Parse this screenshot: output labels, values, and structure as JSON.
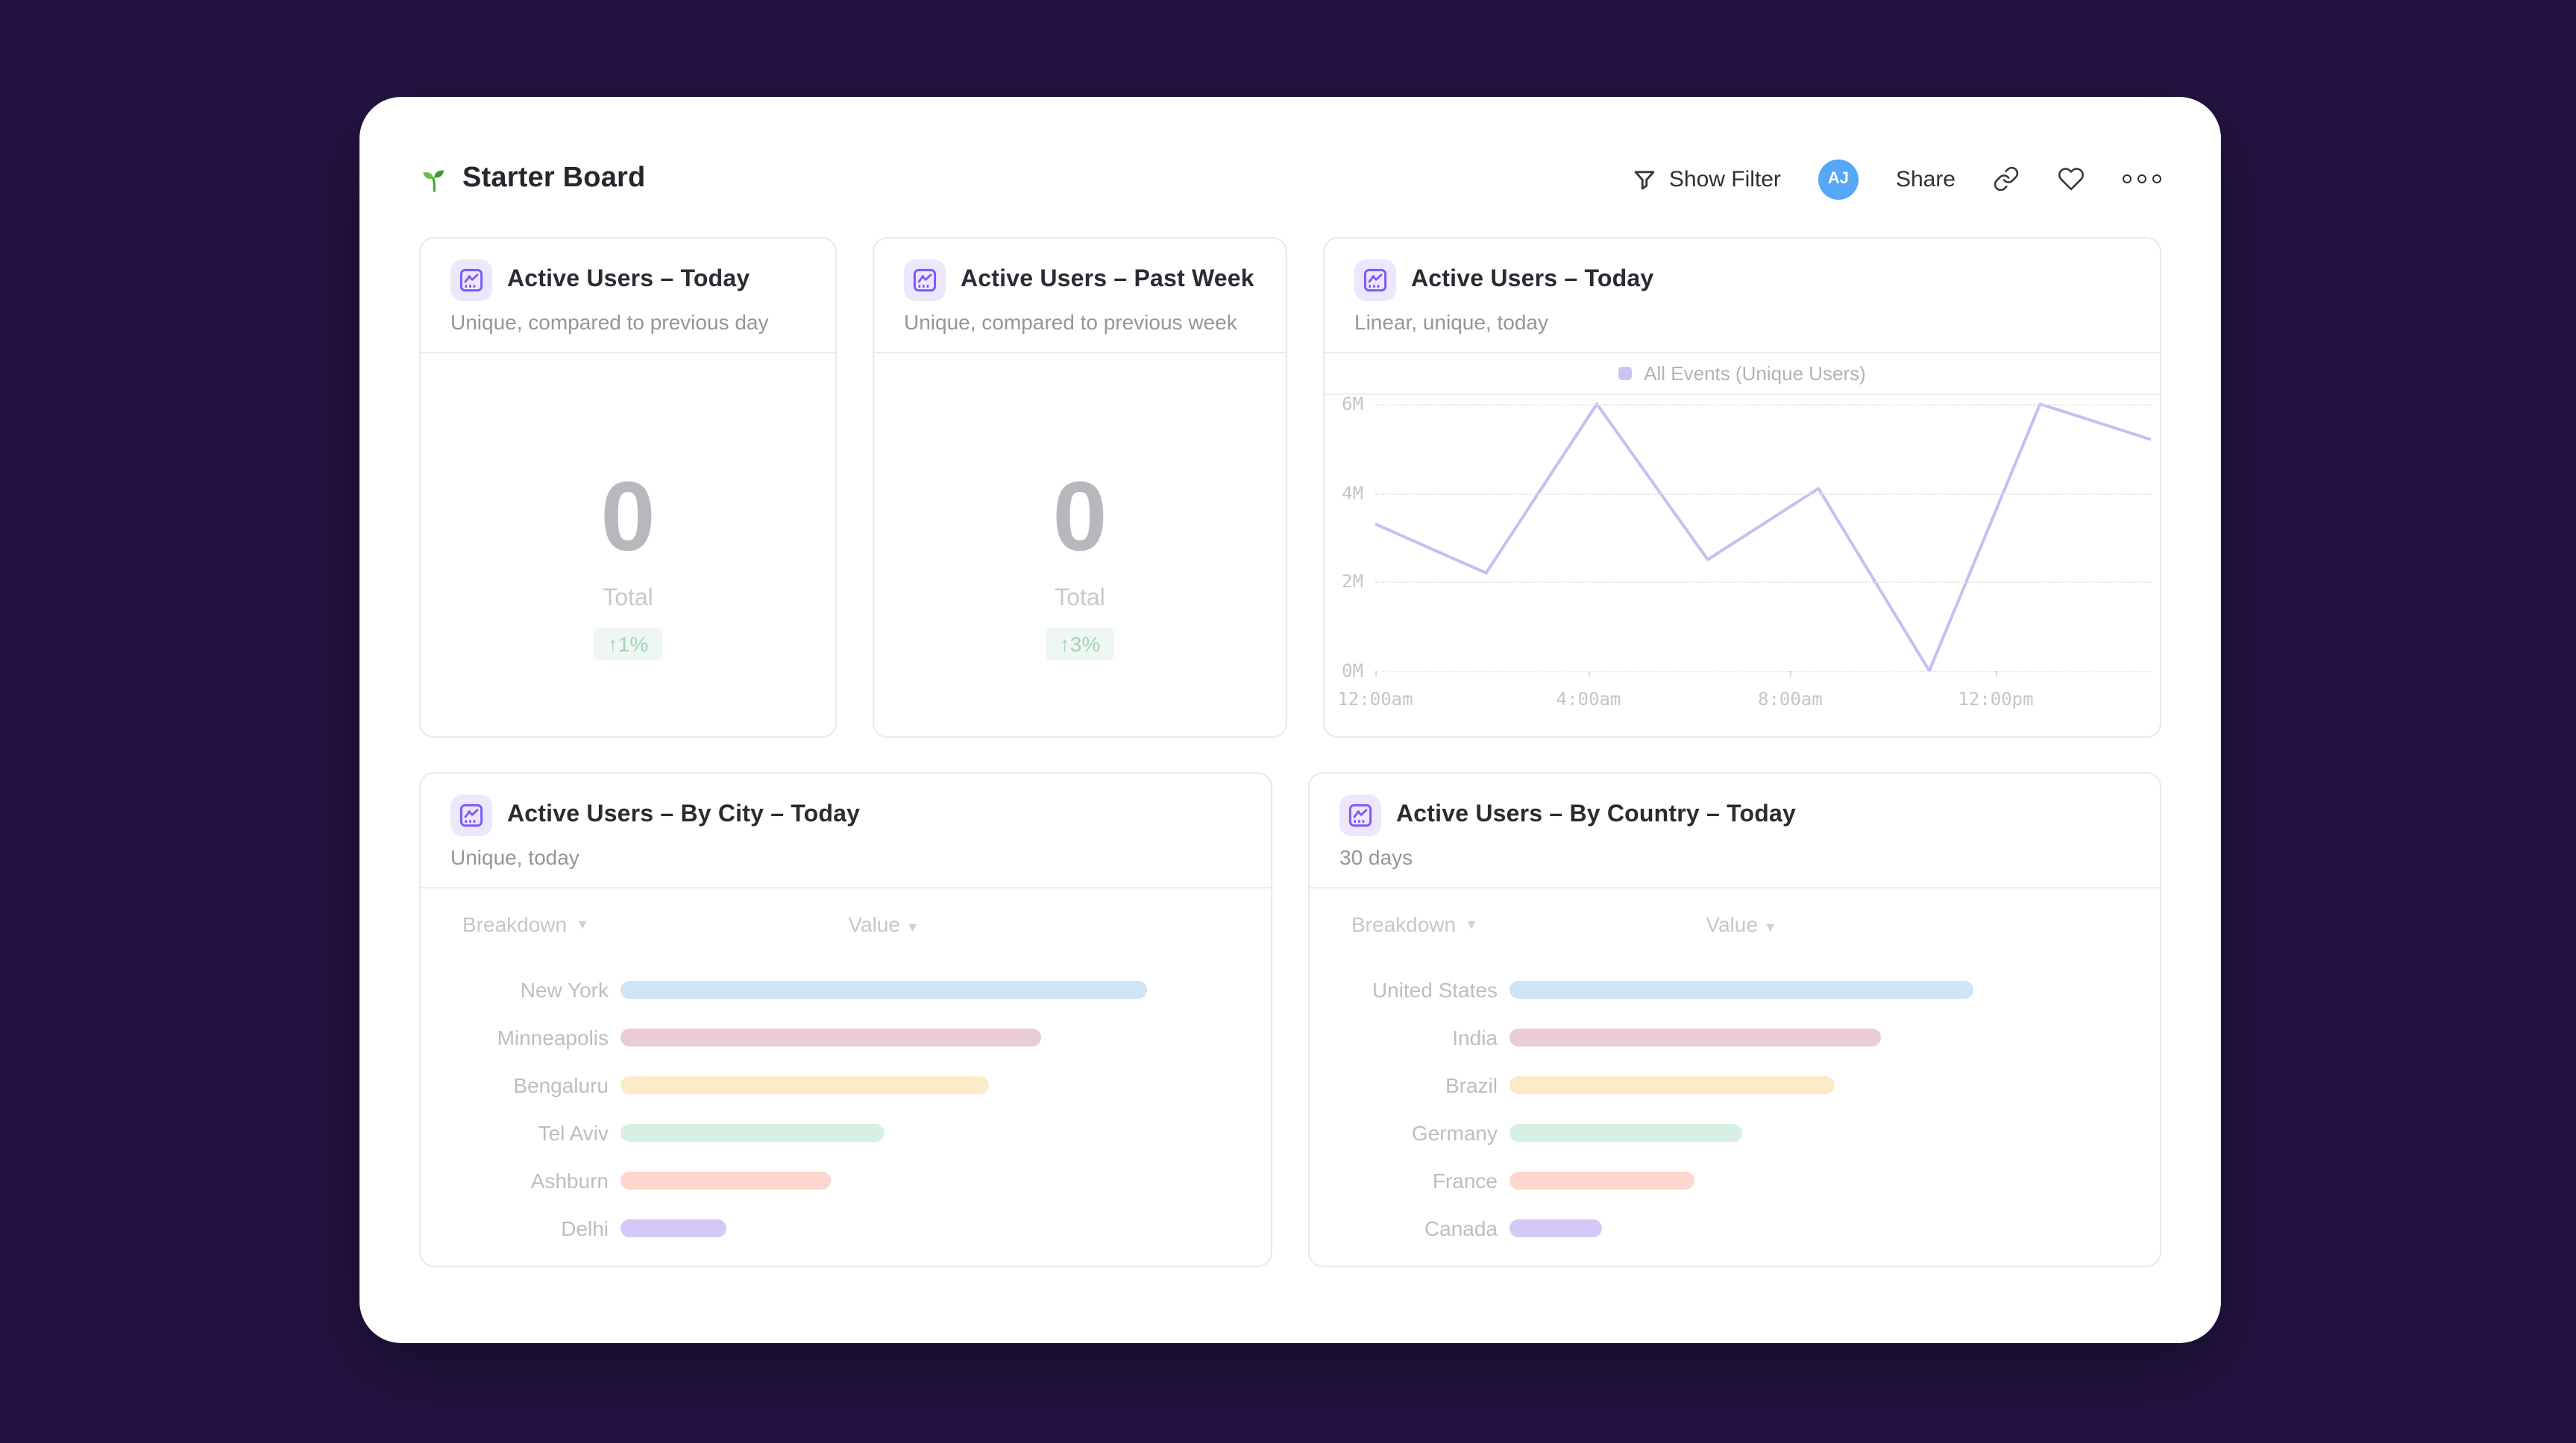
{
  "page": {
    "background_color": "#231342",
    "panel_color": "#ffffff"
  },
  "header": {
    "title": "Starter Board",
    "title_icon": "seedling-icon",
    "actions": {
      "show_filter_label": "Show Filter",
      "show_filter_icon": "filter-funnel-icon",
      "avatar_initials": "AJ",
      "avatar_color": "#55a8f7",
      "share_label": "Share",
      "link_icon": "link-icon",
      "favorite_icon": "heart-icon",
      "more_icon": "more-options-icon"
    }
  },
  "cards": {
    "kpi_today": {
      "title": "Active Users – Today",
      "subtitle": "Unique, compared to previous day",
      "value": "0",
      "value_label": "Total",
      "delta": "↑1%",
      "delta_color": "#a3d2bd"
    },
    "kpi_week": {
      "title": "Active Users – Past Week",
      "subtitle": "Unique, compared to previous week",
      "value": "0",
      "value_label": "Total",
      "delta": "↑3%",
      "delta_color": "#a3d2bd"
    },
    "line": {
      "title": "Active Users – Today",
      "subtitle": "Linear, unique, today",
      "legend": "All Events (Unique Users)"
    },
    "by_city": {
      "title": "Active Users – By City – Today",
      "subtitle": "Unique, today",
      "col_breakdown": "Breakdown",
      "col_value": "Value"
    },
    "by_country": {
      "title": "Active Users – By Country – Today",
      "subtitle": "30 days",
      "col_breakdown": "Breakdown",
      "col_value": "Value"
    }
  },
  "chart_data": [
    {
      "id": "active-users-line",
      "type": "line",
      "title": "Active Users – Today",
      "series": [
        {
          "name": "All Events (Unique Users)",
          "values_millions": [
            3.3,
            2.2,
            6.0,
            2.5,
            4.1,
            0.0,
            6.0,
            5.2
          ]
        }
      ],
      "points_evenly_spaced": true,
      "ylim": [
        0,
        6
      ],
      "y_ticks": [
        "6M",
        "4M",
        "2M",
        "0M"
      ],
      "x_ticks": [
        {
          "label": "12:00am",
          "pos": 0.0
        },
        {
          "label": "4:00am",
          "pos": 0.275
        },
        {
          "label": "8:00am",
          "pos": 0.535
        },
        {
          "label": "12:00pm",
          "pos": 0.8
        }
      ],
      "grid": "dotted-horizontal",
      "legend_position": "top-center",
      "line_color": "#c7bef3"
    },
    {
      "id": "by-city-bars",
      "type": "bar",
      "orientation": "horizontal",
      "title": "Active Users – By City – Today",
      "categories": [
        "New York",
        "Minneapolis",
        "Bengaluru",
        "Tel Aviv",
        "Ashburn",
        "Delhi"
      ],
      "values_relative_pct": [
        100,
        80,
        70,
        50,
        40,
        20
      ],
      "colors": [
        "#cfe4f6",
        "#e9ccd5",
        "#fcebc9",
        "#d6f1e4",
        "#fdd6cd",
        "#d4c9f6"
      ]
    },
    {
      "id": "by-country-bars",
      "type": "bar",
      "orientation": "horizontal",
      "title": "Active Users – By Country – Today",
      "categories": [
        "United States",
        "India",
        "Brazil",
        "Germany",
        "France",
        "Canada"
      ],
      "values_relative_pct": [
        100,
        80,
        70,
        50,
        40,
        20
      ],
      "colors": [
        "#cfe4f6",
        "#e9ccd5",
        "#fcebc9",
        "#d6f1e4",
        "#fdd6cd",
        "#d4c9f6"
      ]
    }
  ]
}
